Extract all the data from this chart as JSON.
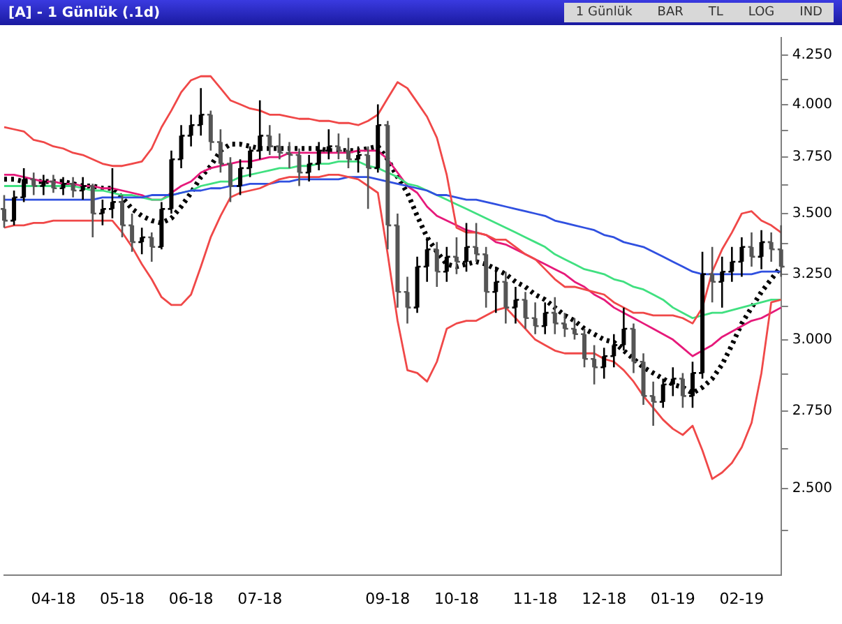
{
  "chart_data": {
    "type": "candlestick",
    "title": "[A] - 1 Günlük (.1d)",
    "annotations": [
      "1 Günlük",
      "BAR",
      "TL",
      "LOG",
      "IND"
    ],
    "categories": [
      null,
      null,
      null,
      null,
      null,
      "04-18",
      null,
      null,
      null,
      null,
      null,
      null,
      "05-18",
      null,
      null,
      null,
      null,
      null,
      null,
      "06-18",
      null,
      null,
      null,
      null,
      null,
      null,
      "07-18",
      null,
      null,
      null,
      null,
      null,
      null,
      null,
      null,
      null,
      null,
      null,
      null,
      "09-18",
      null,
      null,
      null,
      null,
      null,
      null,
      "10-18",
      null,
      null,
      null,
      null,
      null,
      null,
      null,
      "11-18",
      null,
      null,
      null,
      null,
      null,
      null,
      "12-18",
      null,
      null,
      null,
      null,
      null,
      null,
      "01-19",
      null,
      null,
      null,
      null,
      null,
      null,
      "02-19",
      null,
      null,
      null,
      null
    ],
    "colors": [
      "#555555",
      "#000000",
      "#000000",
      "#555555",
      "#000000",
      "#555555",
      "#000000",
      "#555555",
      "#000000",
      "#555555",
      "#000000",
      "#000000",
      "#555555",
      "#555555",
      "#000000",
      "#555555",
      "#000000",
      "#000000",
      "#000000",
      "#000000",
      "#000000",
      "#555555",
      "#555555",
      "#555555",
      "#000000",
      "#000000",
      "#000000",
      "#555555",
      "#555555",
      "#555555",
      "#555555",
      "#000000",
      "#000000",
      "#000000",
      "#555555",
      "#555555",
      "#000000",
      "#555555",
      "#000000",
      "#555555",
      "#555555",
      "#555555",
      "#000000",
      "#000000",
      "#555555",
      "#000000",
      "#555555",
      "#000000",
      "#555555",
      "#555555",
      "#000000",
      "#555555",
      "#000000",
      "#555555",
      "#555555",
      "#000000",
      "#555555",
      "#555555",
      "#555555",
      "#555555",
      "#555555",
      "#000000",
      "#000000",
      "#000000",
      "#555555",
      "#555555",
      "#555555",
      "#000000",
      "#000000",
      "#555555",
      "#000000",
      "#000000",
      "#555555",
      "#000000",
      "#000000",
      "#000000",
      "#555555",
      "#000000",
      "#555555",
      "#555555"
    ],
    "ohlc": [
      [
        3.52,
        3.58,
        3.44,
        3.47
      ],
      [
        3.47,
        3.6,
        3.45,
        3.57
      ],
      [
        3.57,
        3.7,
        3.55,
        3.65
      ],
      [
        3.65,
        3.68,
        3.58,
        3.62
      ],
      [
        3.62,
        3.67,
        3.58,
        3.64
      ],
      [
        3.64,
        3.67,
        3.59,
        3.61
      ],
      [
        3.61,
        3.66,
        3.58,
        3.63
      ],
      [
        3.63,
        3.66,
        3.57,
        3.6
      ],
      [
        3.6,
        3.66,
        3.56,
        3.62
      ],
      [
        3.62,
        3.63,
        3.4,
        3.5
      ],
      [
        3.5,
        3.56,
        3.45,
        3.52
      ],
      [
        3.52,
        3.7,
        3.48,
        3.55
      ],
      [
        3.55,
        3.58,
        3.4,
        3.45
      ],
      [
        3.45,
        3.5,
        3.34,
        3.38
      ],
      [
        3.38,
        3.44,
        3.33,
        3.4
      ],
      [
        3.4,
        3.42,
        3.3,
        3.36
      ],
      [
        3.36,
        3.55,
        3.35,
        3.52
      ],
      [
        3.52,
        3.78,
        3.5,
        3.74
      ],
      [
        3.74,
        3.9,
        3.7,
        3.85
      ],
      [
        3.85,
        3.95,
        3.8,
        3.9
      ],
      [
        3.9,
        4.08,
        3.85,
        3.95
      ],
      [
        3.95,
        3.97,
        3.78,
        3.82
      ],
      [
        3.82,
        3.88,
        3.68,
        3.72
      ],
      [
        3.72,
        3.75,
        3.55,
        3.62
      ],
      [
        3.62,
        3.74,
        3.58,
        3.7
      ],
      [
        3.7,
        3.8,
        3.66,
        3.78
      ],
      [
        3.78,
        4.02,
        3.74,
        3.85
      ],
      [
        3.85,
        3.9,
        3.76,
        3.8
      ],
      [
        3.8,
        3.86,
        3.74,
        3.77
      ],
      [
        3.77,
        3.82,
        3.7,
        3.76
      ],
      [
        3.76,
        3.79,
        3.62,
        3.68
      ],
      [
        3.68,
        3.76,
        3.64,
        3.72
      ],
      [
        3.72,
        3.82,
        3.69,
        3.78
      ],
      [
        3.78,
        3.88,
        3.74,
        3.8
      ],
      [
        3.8,
        3.86,
        3.74,
        3.78
      ],
      [
        3.78,
        3.84,
        3.7,
        3.74
      ],
      [
        3.74,
        3.8,
        3.68,
        3.76
      ],
      [
        3.76,
        3.8,
        3.52,
        3.7
      ],
      [
        3.7,
        4.0,
        3.68,
        3.9
      ],
      [
        3.9,
        3.92,
        3.35,
        3.45
      ],
      [
        3.45,
        3.5,
        3.12,
        3.18
      ],
      [
        3.18,
        3.24,
        3.06,
        3.12
      ],
      [
        3.12,
        3.32,
        3.1,
        3.28
      ],
      [
        3.28,
        3.4,
        3.22,
        3.35
      ],
      [
        3.35,
        3.38,
        3.2,
        3.26
      ],
      [
        3.26,
        3.36,
        3.22,
        3.32
      ],
      [
        3.32,
        3.4,
        3.25,
        3.3
      ],
      [
        3.3,
        3.46,
        3.26,
        3.36
      ],
      [
        3.36,
        3.46,
        3.3,
        3.33
      ],
      [
        3.33,
        3.36,
        3.12,
        3.18
      ],
      [
        3.18,
        3.28,
        3.1,
        3.22
      ],
      [
        3.22,
        3.26,
        3.06,
        3.12
      ],
      [
        3.12,
        3.2,
        3.06,
        3.15
      ],
      [
        3.15,
        3.18,
        3.04,
        3.08
      ],
      [
        3.08,
        3.14,
        3.02,
        3.05
      ],
      [
        3.05,
        3.14,
        3.02,
        3.1
      ],
      [
        3.1,
        3.16,
        3.02,
        3.06
      ],
      [
        3.06,
        3.1,
        3.01,
        3.04
      ],
      [
        3.04,
        3.08,
        3.0,
        3.02
      ],
      [
        3.02,
        3.04,
        2.9,
        2.93
      ],
      [
        2.93,
        2.98,
        2.84,
        2.9
      ],
      [
        2.9,
        2.97,
        2.86,
        2.94
      ],
      [
        2.94,
        3.02,
        2.9,
        2.98
      ],
      [
        2.98,
        3.12,
        2.96,
        3.04
      ],
      [
        3.04,
        3.06,
        2.88,
        2.92
      ],
      [
        2.92,
        2.95,
        2.77,
        2.8
      ],
      [
        2.8,
        2.85,
        2.7,
        2.78
      ],
      [
        2.78,
        2.86,
        2.76,
        2.84
      ],
      [
        2.84,
        2.9,
        2.8,
        2.86
      ],
      [
        2.86,
        2.88,
        2.76,
        2.8
      ],
      [
        2.8,
        2.92,
        2.76,
        2.88
      ],
      [
        2.88,
        3.34,
        2.86,
        3.25
      ],
      [
        3.25,
        3.36,
        3.14,
        3.22
      ],
      [
        3.22,
        3.32,
        3.12,
        3.26
      ],
      [
        3.26,
        3.36,
        3.22,
        3.3
      ],
      [
        3.3,
        3.4,
        3.24,
        3.36
      ],
      [
        3.36,
        3.42,
        3.28,
        3.32
      ],
      [
        3.32,
        3.43,
        3.27,
        3.38
      ],
      [
        3.38,
        3.42,
        3.3,
        3.35
      ],
      [
        3.35,
        3.45,
        3.24,
        3.28
      ]
    ],
    "series": [
      {
        "type": "line",
        "color": "#f04848",
        "values": [
          3.89,
          3.88,
          3.87,
          3.83,
          3.82,
          3.8,
          3.79,
          3.77,
          3.76,
          3.74,
          3.72,
          3.71,
          3.71,
          3.72,
          3.73,
          3.79,
          3.89,
          3.97,
          4.06,
          4.12,
          4.14,
          4.14,
          4.08,
          4.02,
          4.0,
          3.98,
          3.97,
          3.95,
          3.95,
          3.94,
          3.93,
          3.93,
          3.92,
          3.92,
          3.91,
          3.91,
          3.9,
          3.92,
          3.95,
          4.03,
          4.11,
          4.08,
          4.01,
          3.94,
          3.84,
          3.67,
          3.44,
          3.42,
          3.42,
          3.41,
          3.39,
          3.39,
          3.36,
          3.33,
          3.31,
          3.27,
          3.23,
          3.2,
          3.2,
          3.19,
          3.18,
          3.17,
          3.14,
          3.12,
          3.1,
          3.1,
          3.09,
          3.09,
          3.09,
          3.08,
          3.06,
          3.12,
          3.26,
          3.35,
          3.42,
          3.5,
          3.51,
          3.47,
          3.45,
          3.42
        ]
      },
      {
        "type": "line",
        "color": "#f04848",
        "values": [
          3.44,
          3.45,
          3.45,
          3.46,
          3.46,
          3.47,
          3.47,
          3.47,
          3.47,
          3.47,
          3.47,
          3.47,
          3.42,
          3.36,
          3.29,
          3.23,
          3.16,
          3.13,
          3.13,
          3.17,
          3.28,
          3.4,
          3.49,
          3.57,
          3.59,
          3.6,
          3.61,
          3.63,
          3.65,
          3.66,
          3.66,
          3.66,
          3.66,
          3.67,
          3.67,
          3.66,
          3.65,
          3.62,
          3.59,
          3.33,
          3.07,
          2.89,
          2.88,
          2.85,
          2.92,
          3.04,
          3.06,
          3.07,
          3.07,
          3.09,
          3.11,
          3.12,
          3.08,
          3.04,
          3.0,
          2.98,
          2.96,
          2.95,
          2.95,
          2.95,
          2.95,
          2.93,
          2.92,
          2.89,
          2.85,
          2.8,
          2.76,
          2.72,
          2.69,
          2.67,
          2.7,
          2.62,
          2.53,
          2.55,
          2.58,
          2.63,
          2.71,
          2.88,
          3.14,
          3.15
        ]
      },
      {
        "type": "line",
        "color": "#3050e0",
        "values": [
          3.56,
          3.56,
          3.56,
          3.56,
          3.56,
          3.56,
          3.56,
          3.56,
          3.56,
          3.56,
          3.57,
          3.57,
          3.57,
          3.57,
          3.57,
          3.58,
          3.58,
          3.58,
          3.59,
          3.6,
          3.6,
          3.61,
          3.61,
          3.62,
          3.62,
          3.63,
          3.63,
          3.63,
          3.64,
          3.64,
          3.65,
          3.65,
          3.65,
          3.65,
          3.65,
          3.66,
          3.66,
          3.66,
          3.65,
          3.64,
          3.63,
          3.62,
          3.61,
          3.6,
          3.58,
          3.58,
          3.57,
          3.56,
          3.56,
          3.55,
          3.54,
          3.53,
          3.52,
          3.51,
          3.5,
          3.49,
          3.47,
          3.46,
          3.45,
          3.44,
          3.43,
          3.41,
          3.4,
          3.38,
          3.37,
          3.36,
          3.34,
          3.32,
          3.3,
          3.28,
          3.26,
          3.25,
          3.25,
          3.25,
          3.25,
          3.25,
          3.25,
          3.26,
          3.26,
          3.26
        ]
      },
      {
        "type": "line",
        "color": "#40e080",
        "values": [
          3.62,
          3.62,
          3.62,
          3.62,
          3.62,
          3.62,
          3.62,
          3.62,
          3.61,
          3.6,
          3.6,
          3.59,
          3.58,
          3.58,
          3.57,
          3.56,
          3.56,
          3.58,
          3.59,
          3.6,
          3.62,
          3.63,
          3.64,
          3.64,
          3.66,
          3.67,
          3.68,
          3.69,
          3.7,
          3.7,
          3.71,
          3.71,
          3.72,
          3.72,
          3.73,
          3.73,
          3.73,
          3.71,
          3.7,
          3.68,
          3.66,
          3.63,
          3.62,
          3.6,
          3.58,
          3.56,
          3.54,
          3.52,
          3.5,
          3.48,
          3.46,
          3.44,
          3.42,
          3.4,
          3.38,
          3.36,
          3.33,
          3.31,
          3.29,
          3.27,
          3.26,
          3.25,
          3.23,
          3.22,
          3.2,
          3.19,
          3.17,
          3.15,
          3.12,
          3.1,
          3.08,
          3.09,
          3.1,
          3.1,
          3.11,
          3.12,
          3.13,
          3.14,
          3.15,
          3.15
        ]
      },
      {
        "type": "line",
        "color": "#e6197a",
        "values": [
          3.67,
          3.67,
          3.66,
          3.65,
          3.64,
          3.64,
          3.63,
          3.63,
          3.62,
          3.62,
          3.61,
          3.61,
          3.6,
          3.59,
          3.58,
          3.56,
          3.56,
          3.59,
          3.62,
          3.64,
          3.68,
          3.7,
          3.71,
          3.72,
          3.73,
          3.73,
          3.74,
          3.75,
          3.75,
          3.77,
          3.77,
          3.77,
          3.77,
          3.77,
          3.77,
          3.77,
          3.78,
          3.78,
          3.78,
          3.74,
          3.68,
          3.62,
          3.59,
          3.53,
          3.49,
          3.47,
          3.45,
          3.43,
          3.42,
          3.41,
          3.38,
          3.37,
          3.35,
          3.33,
          3.31,
          3.29,
          3.27,
          3.25,
          3.22,
          3.2,
          3.17,
          3.15,
          3.12,
          3.1,
          3.08,
          3.06,
          3.04,
          3.02,
          3.0,
          2.97,
          2.94,
          2.96,
          2.98,
          3.01,
          3.03,
          3.05,
          3.07,
          3.08,
          3.1,
          3.12
        ]
      },
      {
        "type": "line",
        "color": "#000000",
        "line_style": "dotted",
        "values": [
          3.65,
          3.65,
          3.64,
          3.64,
          3.64,
          3.64,
          3.64,
          3.63,
          3.62,
          3.62,
          3.61,
          3.61,
          3.57,
          3.52,
          3.49,
          3.47,
          3.46,
          3.48,
          3.53,
          3.59,
          3.66,
          3.71,
          3.78,
          3.81,
          3.81,
          3.8,
          3.79,
          3.79,
          3.79,
          3.79,
          3.79,
          3.79,
          3.79,
          3.78,
          3.78,
          3.78,
          3.78,
          3.79,
          3.8,
          3.74,
          3.66,
          3.59,
          3.49,
          3.4,
          3.34,
          3.29,
          3.28,
          3.29,
          3.3,
          3.29,
          3.27,
          3.25,
          3.22,
          3.2,
          3.17,
          3.15,
          3.12,
          3.09,
          3.07,
          3.04,
          3.02,
          3.0,
          2.99,
          2.96,
          2.93,
          2.9,
          2.88,
          2.86,
          2.84,
          2.83,
          2.81,
          2.83,
          2.86,
          2.91,
          2.98,
          3.06,
          3.12,
          3.18,
          3.23,
          3.28
        ]
      }
    ],
    "log": true,
    "ylim": [
      2.25,
      4.34
    ],
    "yticks": [
      {
        "value": 2.375,
        "label": null
      },
      {
        "value": 2.5,
        "label": "2.500"
      },
      {
        "value": 2.625,
        "label": null
      },
      {
        "value": 2.75,
        "label": "2.750"
      },
      {
        "value": 2.875,
        "label": null
      },
      {
        "value": 3.0,
        "label": "3.000"
      },
      {
        "value": 3.125,
        "label": null
      },
      {
        "value": 3.25,
        "label": "3.250"
      },
      {
        "value": 3.375,
        "label": null
      },
      {
        "value": 3.5,
        "label": "3.500"
      },
      {
        "value": 3.625,
        "label": null
      },
      {
        "value": 3.75,
        "label": "3.750"
      },
      {
        "value": 3.875,
        "label": null
      },
      {
        "value": 4.0,
        "label": "4.000"
      },
      {
        "value": 4.125,
        "label": null
      },
      {
        "value": 4.25,
        "label": "4.250"
      }
    ]
  }
}
